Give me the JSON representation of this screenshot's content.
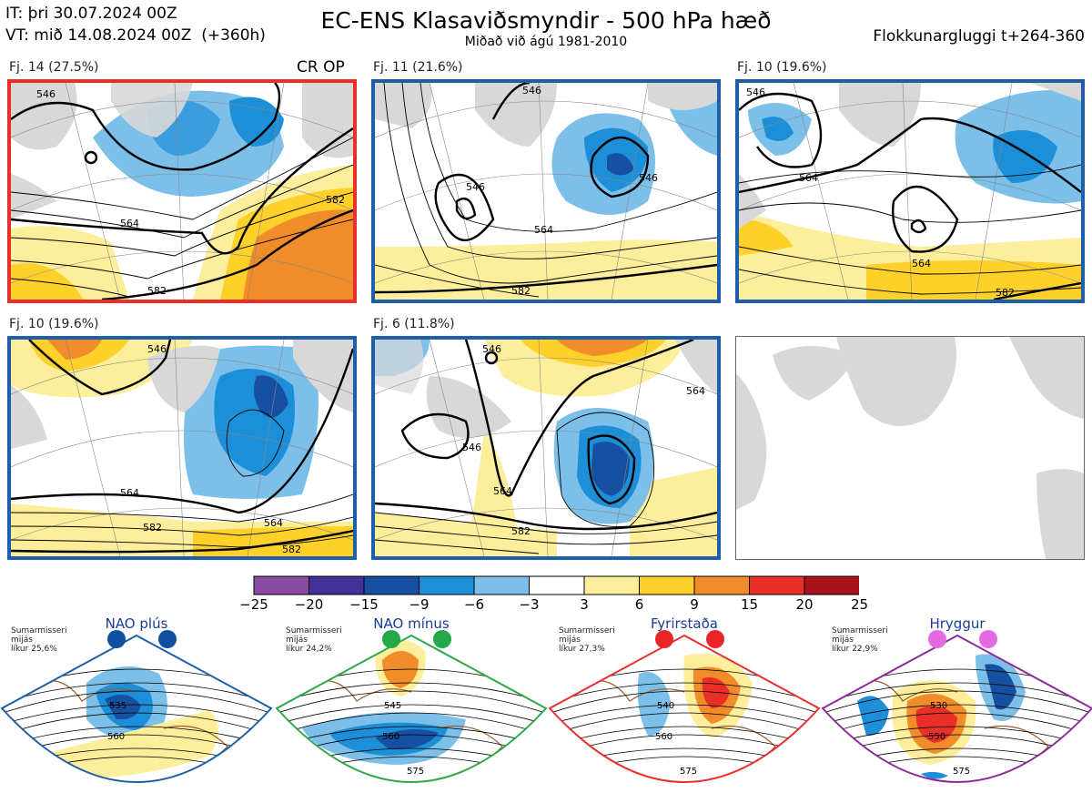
{
  "header": {
    "init_line": "IT: þri 30.07.2024 00Z",
    "valid_line": "VT: mið 14.08.2024 00Z  (+360h)",
    "title": "EC-ENS Klasaviðsmyndir - 500 hPa hæð",
    "subtitle": "Miðað við ágú 1981-2010",
    "window": "Flokkunargluggi t+264-360"
  },
  "panels": [
    {
      "label": "Fj. 14 (27.5%)",
      "tag": "CR OP",
      "border": "#e8302a",
      "contours": [
        "546",
        "564",
        "582",
        "582"
      ]
    },
    {
      "label": "Fj. 11 (21.6%)",
      "tag": "",
      "border": "#1f5fa8",
      "contours": [
        "546",
        "546",
        "564",
        "582",
        "546"
      ]
    },
    {
      "label": "Fj. 10 (19.6%)",
      "tag": "",
      "border": "#1f5fa8",
      "contours": [
        "546",
        "564",
        "564",
        "582"
      ]
    },
    {
      "label": "Fj. 10 (19.6%)",
      "tag": "",
      "border": "#1f5fa8",
      "contours": [
        "546",
        "564",
        "564",
        "582",
        "582"
      ]
    },
    {
      "label": "Fj. 6 (11.8%)",
      "tag": "",
      "border": "#1f5fa8",
      "contours": [
        "546",
        "546",
        "564",
        "564",
        "582"
      ]
    }
  ],
  "colorbar": {
    "ticks": [
      "−25",
      "−20",
      "−15",
      "−9",
      "−6",
      "−3",
      "3",
      "6",
      "9",
      "15",
      "20",
      "25"
    ],
    "colors": [
      "#8a4aa0",
      "#43319a",
      "#1750a0",
      "#1d8fd8",
      "#7cc0ea",
      "#ffffff",
      "#fcee9a",
      "#fdd12a",
      "#f08c2a",
      "#e83028",
      "#a8121a"
    ]
  },
  "regimes": [
    {
      "name": "NAO plús",
      "note": "Sumarmisseri\nmijás\nlíkur 25,6%",
      "dot_color": "#0f4fa2",
      "border": "#1f5fa8",
      "contours": [
        "535",
        "560"
      ]
    },
    {
      "name": "NAO mínus",
      "note": "Sumarmisseri\nmijás\nlíkur 24,2%",
      "dot_color": "#23a84a",
      "border": "#2ea84a",
      "contours": [
        "545",
        "560",
        "575"
      ]
    },
    {
      "name": "Fyrirstaða",
      "note": "Sumarmisseri\nmijás\nlíkur 27,3%",
      "dot_color": "#e8262a",
      "border": "#e83030",
      "contours": [
        "540",
        "560",
        "575"
      ]
    },
    {
      "name": "Hryggur",
      "note": "Sumarmisseri\nmijás\nlíkur 22,9%",
      "dot_color": "#e46ae4",
      "border": "#8e2a9a",
      "contours": [
        "530",
        "550",
        "575"
      ]
    }
  ]
}
